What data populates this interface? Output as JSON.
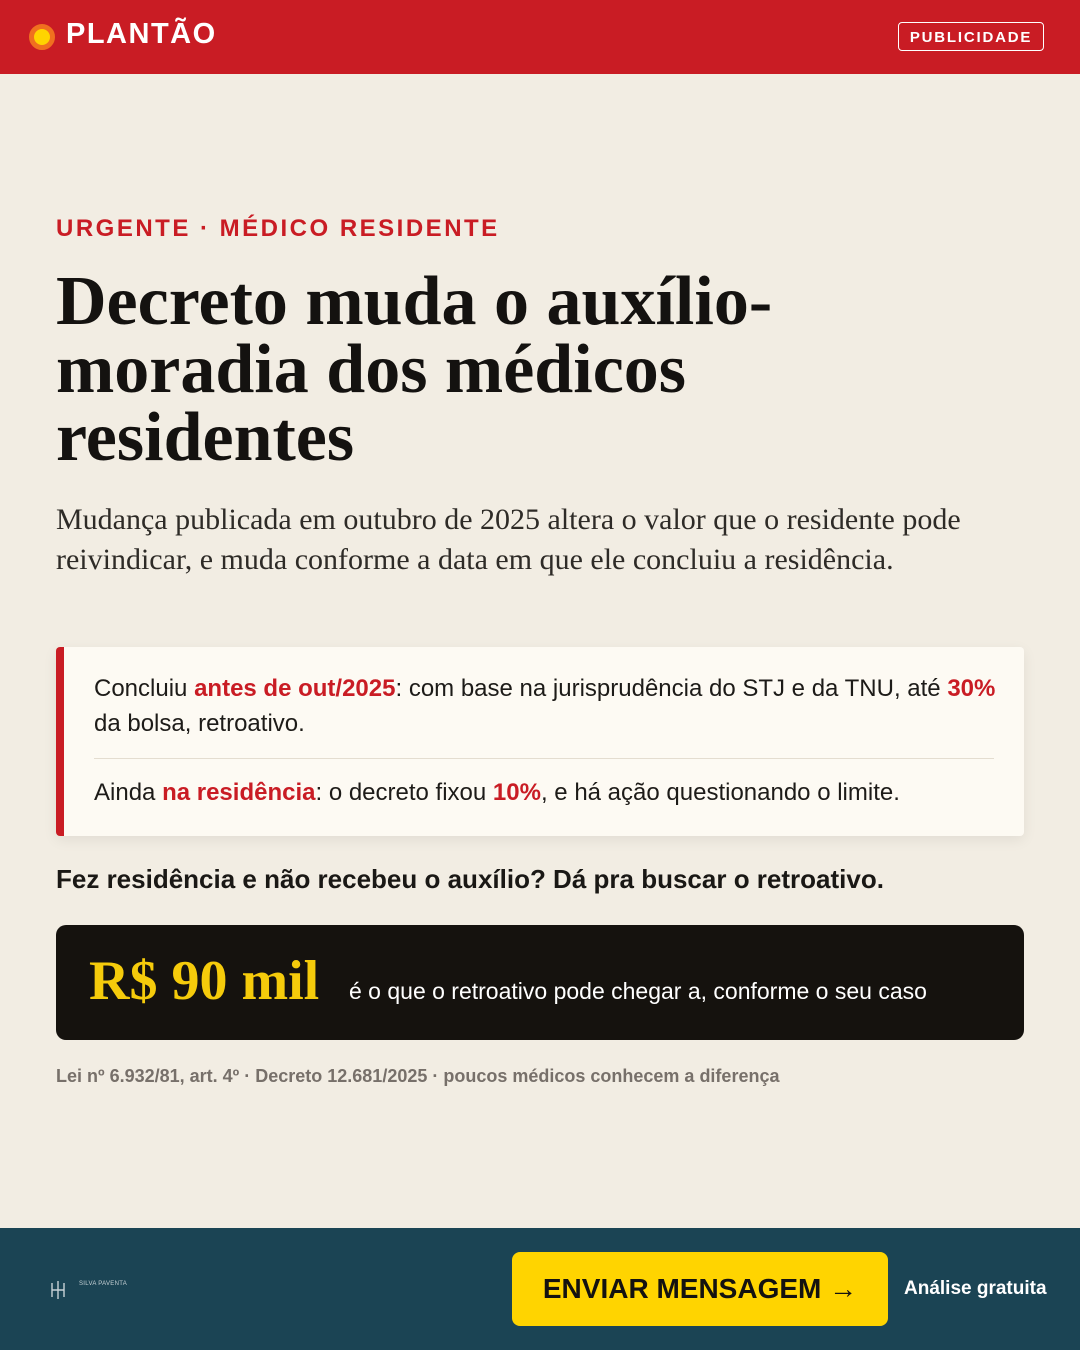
{
  "header": {
    "brand": "PLANTÃO",
    "badge": "PUBLICIDADE"
  },
  "kicker": "URGENTE · MÉDICO RESIDENTE",
  "headline_lines": [
    "Decreto muda o auxílio-",
    "moradia dos médicos",
    "residentes"
  ],
  "subtitle": "Mudança publicada em outubro de 2025 altera o valor que o residente pode reivindicar, e muda conforme a data em que ele concluiu a residência.",
  "callout": {
    "items": [
      {
        "parts": [
          "Concluiu ",
          "antes de out/2025",
          ": com base na jurisprudência do STJ e da TNU, até ",
          "30%",
          " da bolsa, retroativo."
        ]
      },
      {
        "parts": [
          "Ainda ",
          "na residência",
          ": o decreto fixou ",
          "10%",
          ", e há ação questionando o limite."
        ]
      }
    ]
  },
  "question": "Fez residência e não recebeu o auxílio? Dá pra buscar o retroativo.",
  "banner": {
    "amount": "R$ 90 mil",
    "text": "é o que o retroativo pode chegar a, conforme o seu caso"
  },
  "footnote": "Lei nº 6.932/81, art. 4º · Decreto 12.681/2025 · poucos médicos conhecem a diferença",
  "footer": {
    "logo": "SILVA PAVENTA",
    "button": "ENVIAR MENSAGEM →",
    "note": "Análise gratuita"
  }
}
